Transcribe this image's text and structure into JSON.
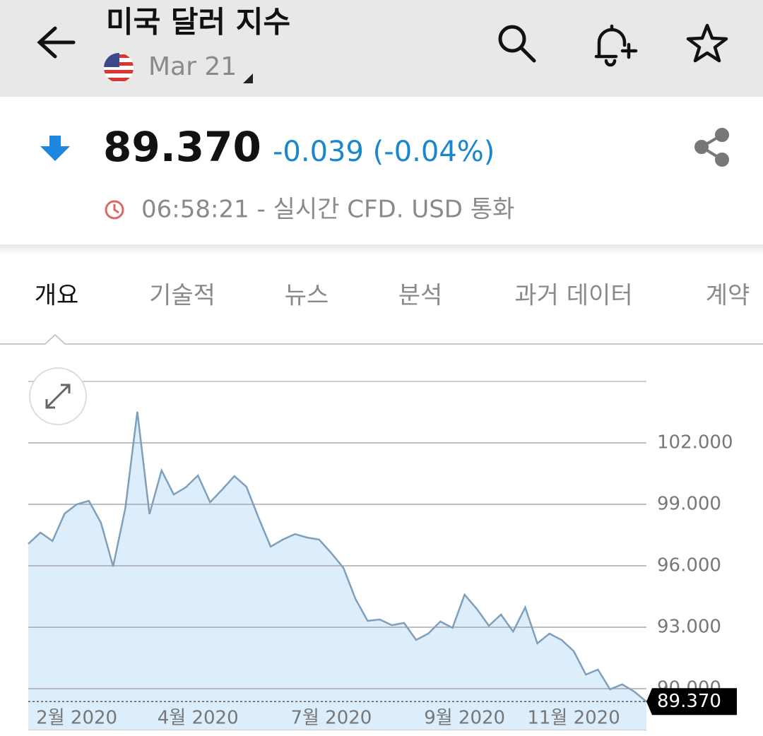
{
  "header": {
    "title": "미국 달러 지수",
    "date": "Mar 21"
  },
  "quote": {
    "price": "89.370",
    "change": "-0.039 (-0.04%)",
    "time_note": "06:58:21 - 실시간 CFD. USD 통화"
  },
  "tabs": [
    "개요",
    "기술적",
    "뉴스",
    "분석",
    "과거 데이터",
    "계약"
  ],
  "chart_data": {
    "type": "line",
    "categories": [
      null,
      null,
      null,
      null,
      "2월 2020",
      null,
      null,
      null,
      null,
      null,
      null,
      null,
      null,
      null,
      "4월 2020",
      null,
      null,
      null,
      null,
      null,
      null,
      null,
      null,
      null,
      null,
      "7월 2020",
      null,
      null,
      null,
      null,
      null,
      null,
      null,
      null,
      null,
      null,
      "9월 2020",
      null,
      null,
      null,
      null,
      null,
      null,
      null,
      null,
      "11월 2020",
      null,
      null,
      null,
      null,
      null,
      null
    ],
    "series": [
      {
        "color": "#7f9fbb",
        "fill": "#dcedfb",
        "values": [
          97.07,
          97.62,
          97.21,
          98.55,
          99.0,
          99.17,
          98.1,
          95.97,
          98.79,
          103.52,
          98.52,
          100.66,
          99.48,
          99.83,
          100.41,
          99.1,
          99.72,
          100.38,
          99.86,
          98.34,
          96.93,
          97.28,
          97.55,
          97.38,
          97.28,
          96.62,
          95.9,
          94.38,
          93.31,
          93.38,
          93.1,
          93.21,
          92.38,
          92.69,
          93.28,
          92.97,
          94.59,
          93.9,
          93.07,
          93.62,
          92.79,
          93.97,
          92.21,
          92.69,
          92.38,
          91.83,
          90.69,
          90.93,
          89.97,
          90.21,
          89.86,
          89.37
        ]
      }
    ],
    "ylim": [
      88,
      105
    ],
    "yticks": [
      {
        "value": 90,
        "label": "90.000"
      },
      {
        "value": 93,
        "label": "93.000"
      },
      {
        "value": 96,
        "label": "96.000"
      },
      {
        "value": 99,
        "label": "99.000"
      },
      {
        "value": 102,
        "label": "102.000"
      }
    ],
    "grid": true
  }
}
